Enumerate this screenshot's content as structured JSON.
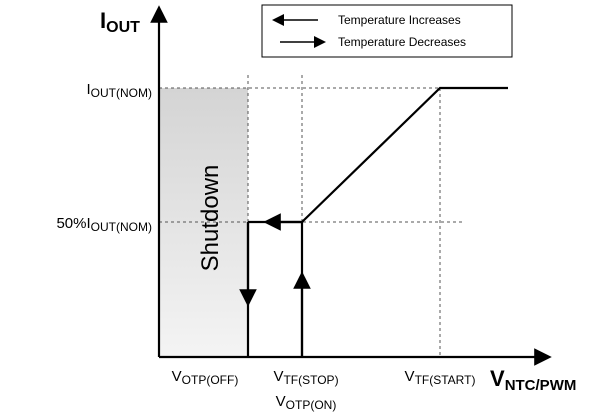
{
  "y_axis_label": {
    "main": "I",
    "sub": "OUT"
  },
  "x_axis_label": {
    "main": "V",
    "sub": "NTC/PWM"
  },
  "y_labels": [
    {
      "main": "I",
      "sub": "OUT(NOM)"
    },
    {
      "main": "50%I",
      "sub": "OUT(NOM)"
    }
  ],
  "x_labels": [
    {
      "main": "V",
      "sub": "OTP(OFF)"
    },
    {
      "main": "V",
      "sub": "TF(STOP)"
    },
    {
      "main": "V",
      "sub": "OTP(ON)"
    },
    {
      "main": "V",
      "sub": "TF(START)"
    }
  ],
  "region_label": "Shutdown",
  "legend": [
    "Temperature Increases",
    "Temperature Decreases"
  ]
}
